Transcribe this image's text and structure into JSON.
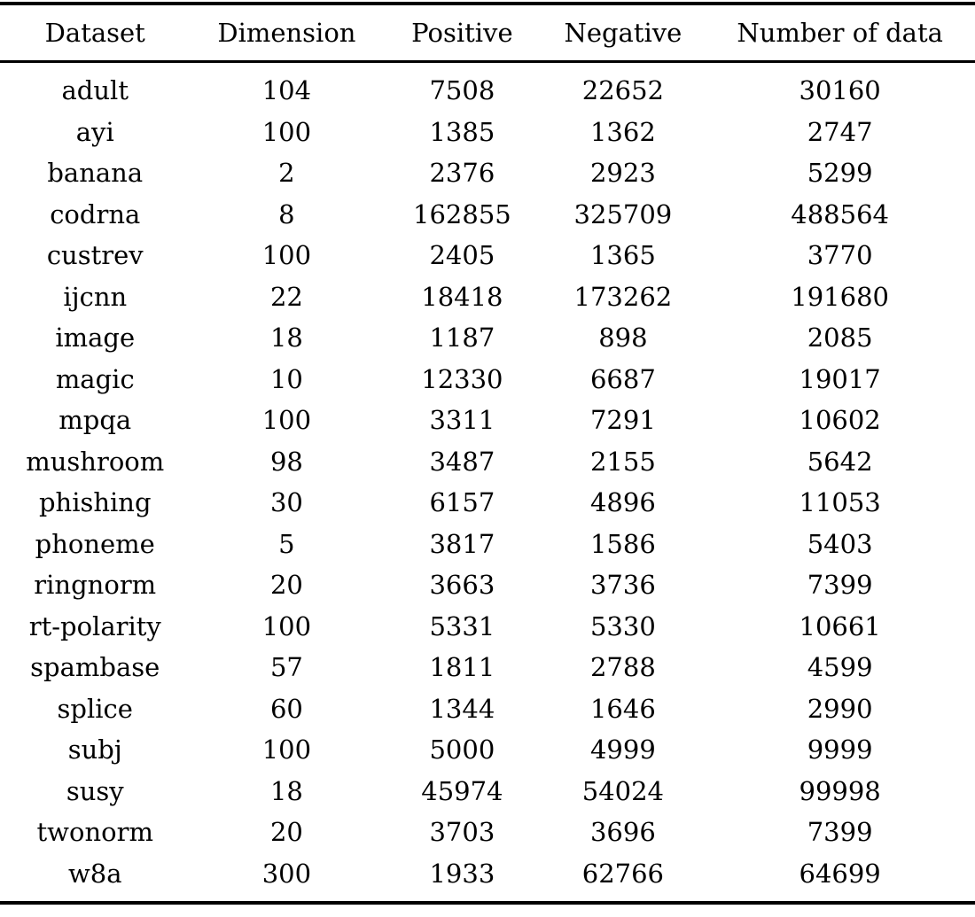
{
  "table": {
    "columns": [
      "Dataset",
      "Dimension",
      "Positive",
      "Negative",
      "Number of data"
    ],
    "rows": [
      [
        "adult",
        "104",
        "7508",
        "22652",
        "30160"
      ],
      [
        "ayi",
        "100",
        "1385",
        "1362",
        "2747"
      ],
      [
        "banana",
        "2",
        "2376",
        "2923",
        "5299"
      ],
      [
        "codrna",
        "8",
        "162855",
        "325709",
        "488564"
      ],
      [
        "custrev",
        "100",
        "2405",
        "1365",
        "3770"
      ],
      [
        "ijcnn",
        "22",
        "18418",
        "173262",
        "191680"
      ],
      [
        "image",
        "18",
        "1187",
        "898",
        "2085"
      ],
      [
        "magic",
        "10",
        "12330",
        "6687",
        "19017"
      ],
      [
        "mpqa",
        "100",
        "3311",
        "7291",
        "10602"
      ],
      [
        "mushroom",
        "98",
        "3487",
        "2155",
        "5642"
      ],
      [
        "phishing",
        "30",
        "6157",
        "4896",
        "11053"
      ],
      [
        "phoneme",
        "5",
        "3817",
        "1586",
        "5403"
      ],
      [
        "ringnorm",
        "20",
        "3663",
        "3736",
        "7399"
      ],
      [
        "rt-polarity",
        "100",
        "5331",
        "5330",
        "10661"
      ],
      [
        "spambase",
        "57",
        "1811",
        "2788",
        "4599"
      ],
      [
        "splice",
        "60",
        "1344",
        "1646",
        "2990"
      ],
      [
        "subj",
        "100",
        "5000",
        "4999",
        "9999"
      ],
      [
        "susy",
        "18",
        "45974",
        "54024",
        "99998"
      ],
      [
        "twonorm",
        "20",
        "3703",
        "3696",
        "7399"
      ],
      [
        "w8a",
        "300",
        "1933",
        "62766",
        "64699"
      ]
    ]
  },
  "colors": {
    "text": "#000000",
    "background": "#ffffff",
    "rule": "#000000"
  }
}
